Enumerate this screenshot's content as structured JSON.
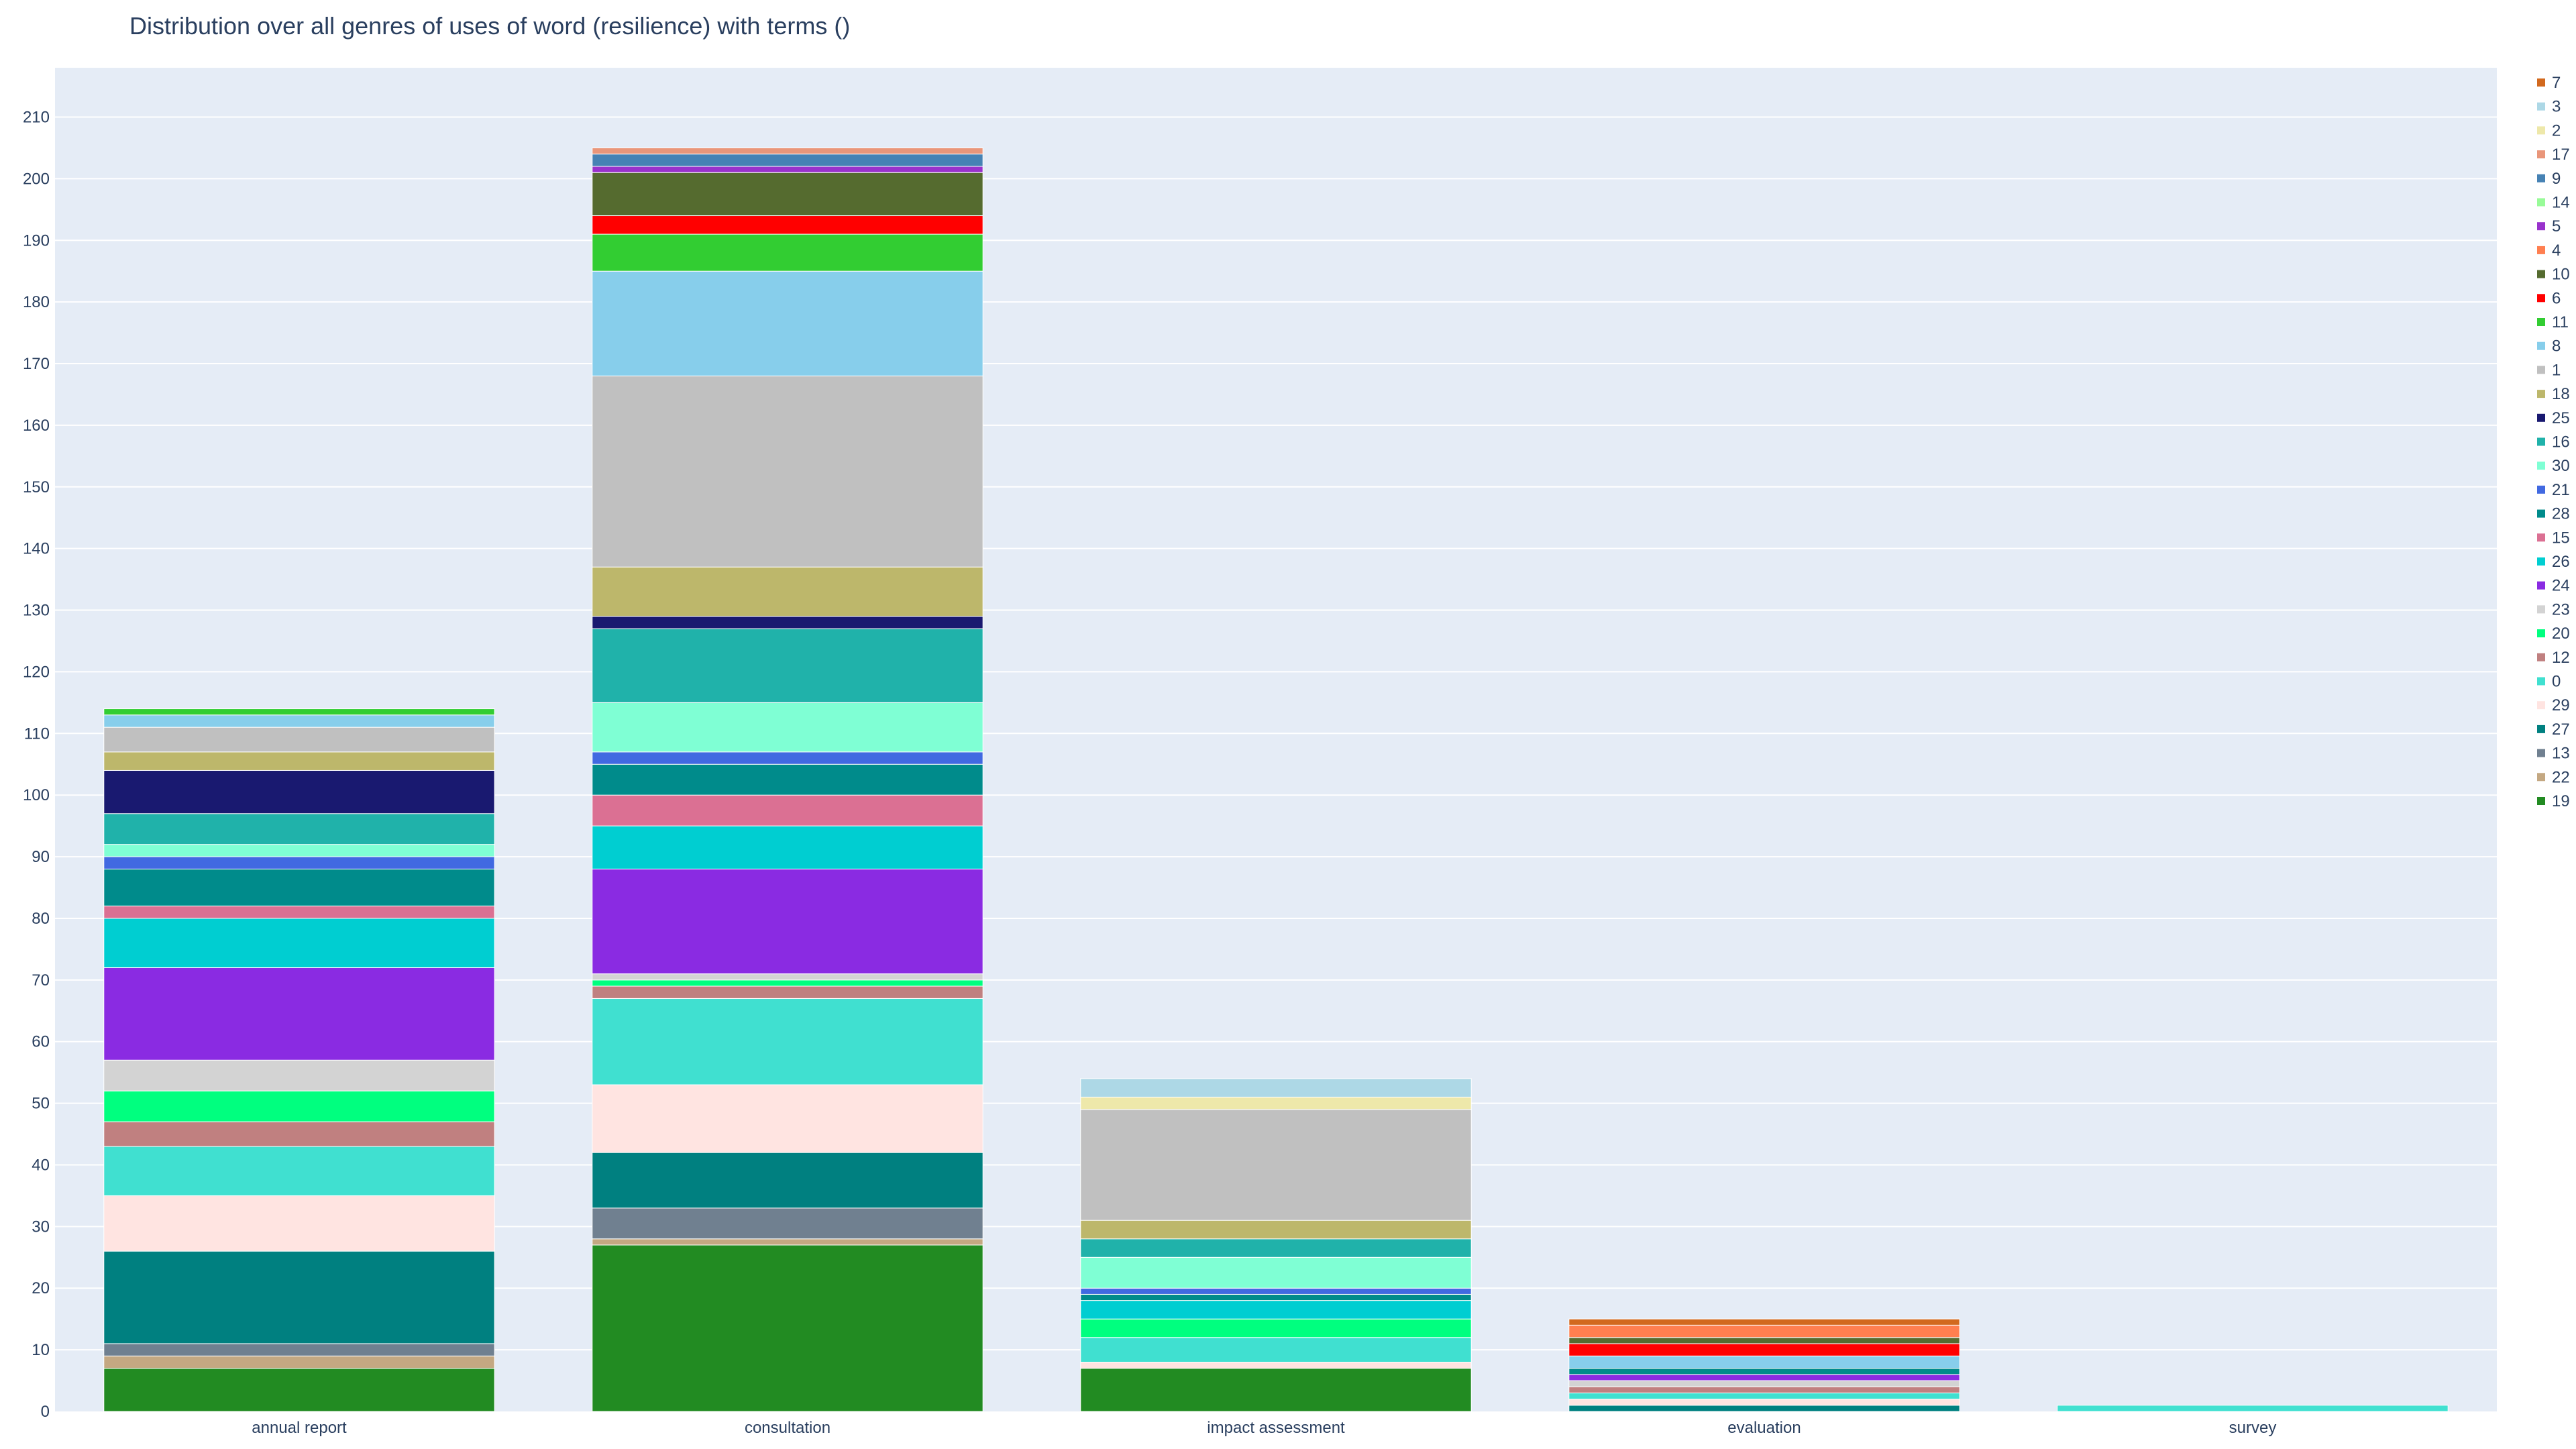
{
  "chart_data": {
    "type": "bar",
    "stacked": true,
    "title": "Distribution over all genres of uses of word (resilience) with terms ()",
    "xlabel": "",
    "ylabel": "",
    "categories": [
      "annual report",
      "consultation",
      "impact assessment",
      "evaluation",
      "survey"
    ],
    "ylim": [
      0,
      218
    ],
    "yticks": [
      0,
      10,
      20,
      30,
      40,
      50,
      60,
      70,
      80,
      90,
      100,
      110,
      120,
      130,
      140,
      150,
      160,
      170,
      180,
      190,
      200,
      210
    ],
    "grid": true,
    "legend_position": "right",
    "series": [
      {
        "name": "19",
        "color": "#228b22",
        "values": [
          7,
          27,
          7,
          0,
          0
        ]
      },
      {
        "name": "22",
        "color": "#c4a882",
        "values": [
          2,
          1,
          0,
          0,
          0
        ]
      },
      {
        "name": "13",
        "color": "#708090",
        "values": [
          2,
          5,
          0,
          0,
          0
        ]
      },
      {
        "name": "27",
        "color": "#008080",
        "values": [
          15,
          9,
          0,
          1,
          0
        ]
      },
      {
        "name": "29",
        "color": "#ffe4e1",
        "values": [
          9,
          11,
          1,
          1,
          0
        ]
      },
      {
        "name": "0",
        "color": "#40e0d0",
        "values": [
          8,
          14,
          4,
          1,
          1
        ]
      },
      {
        "name": "12",
        "color": "#c08080",
        "values": [
          4,
          2,
          0,
          1,
          0
        ]
      },
      {
        "name": "20",
        "color": "#00ff7f",
        "values": [
          5,
          1,
          3,
          0,
          0
        ]
      },
      {
        "name": "23",
        "color": "#d3d3d3",
        "values": [
          5,
          1,
          0,
          1,
          0
        ]
      },
      {
        "name": "24",
        "color": "#8a2be2",
        "values": [
          15,
          17,
          0,
          1,
          0
        ]
      },
      {
        "name": "26",
        "color": "#00ced1",
        "values": [
          8,
          7,
          3,
          0,
          0
        ]
      },
      {
        "name": "15",
        "color": "#db7093",
        "values": [
          2,
          5,
          0,
          0,
          0
        ]
      },
      {
        "name": "28",
        "color": "#008b8b",
        "values": [
          6,
          5,
          1,
          1,
          0
        ]
      },
      {
        "name": "21",
        "color": "#4169e1",
        "values": [
          2,
          2,
          1,
          0,
          0
        ]
      },
      {
        "name": "30",
        "color": "#7fffd4",
        "values": [
          2,
          8,
          5,
          0,
          0
        ]
      },
      {
        "name": "16",
        "color": "#20b2aa",
        "values": [
          5,
          12,
          3,
          0,
          0
        ]
      },
      {
        "name": "25",
        "color": "#191970",
        "values": [
          7,
          2,
          0,
          0,
          0
        ]
      },
      {
        "name": "18",
        "color": "#bdb76b",
        "values": [
          3,
          8,
          3,
          0,
          0
        ]
      },
      {
        "name": "1",
        "color": "#c0c0c0",
        "values": [
          4,
          31,
          18,
          0,
          0
        ]
      },
      {
        "name": "8",
        "color": "#87ceeb",
        "values": [
          2,
          17,
          0,
          2,
          0
        ]
      },
      {
        "name": "11",
        "color": "#32cd32",
        "values": [
          1,
          6,
          0,
          0,
          0
        ]
      },
      {
        "name": "6",
        "color": "#ff0000",
        "values": [
          0,
          3,
          0,
          2,
          0
        ]
      },
      {
        "name": "10",
        "color": "#556b2f",
        "values": [
          0,
          7,
          0,
          1,
          0
        ]
      },
      {
        "name": "4",
        "color": "#ff7f50",
        "values": [
          0,
          0,
          0,
          2,
          0
        ]
      },
      {
        "name": "5",
        "color": "#9932cc",
        "values": [
          0,
          1,
          0,
          0,
          0
        ]
      },
      {
        "name": "14",
        "color": "#98fb98",
        "values": [
          0,
          0,
          0,
          0,
          0
        ]
      },
      {
        "name": "9",
        "color": "#4682b4",
        "values": [
          0,
          2,
          0,
          0,
          0
        ]
      },
      {
        "name": "17",
        "color": "#e9967a",
        "values": [
          0,
          1,
          0,
          0,
          0
        ]
      },
      {
        "name": "2",
        "color": "#eee8aa",
        "values": [
          0,
          0,
          2,
          0,
          0
        ]
      },
      {
        "name": "3",
        "color": "#add8e6",
        "values": [
          0,
          0,
          3,
          0,
          0
        ]
      },
      {
        "name": "7",
        "color": "#d2691e",
        "values": [
          0,
          0,
          0,
          1,
          0
        ]
      }
    ]
  }
}
